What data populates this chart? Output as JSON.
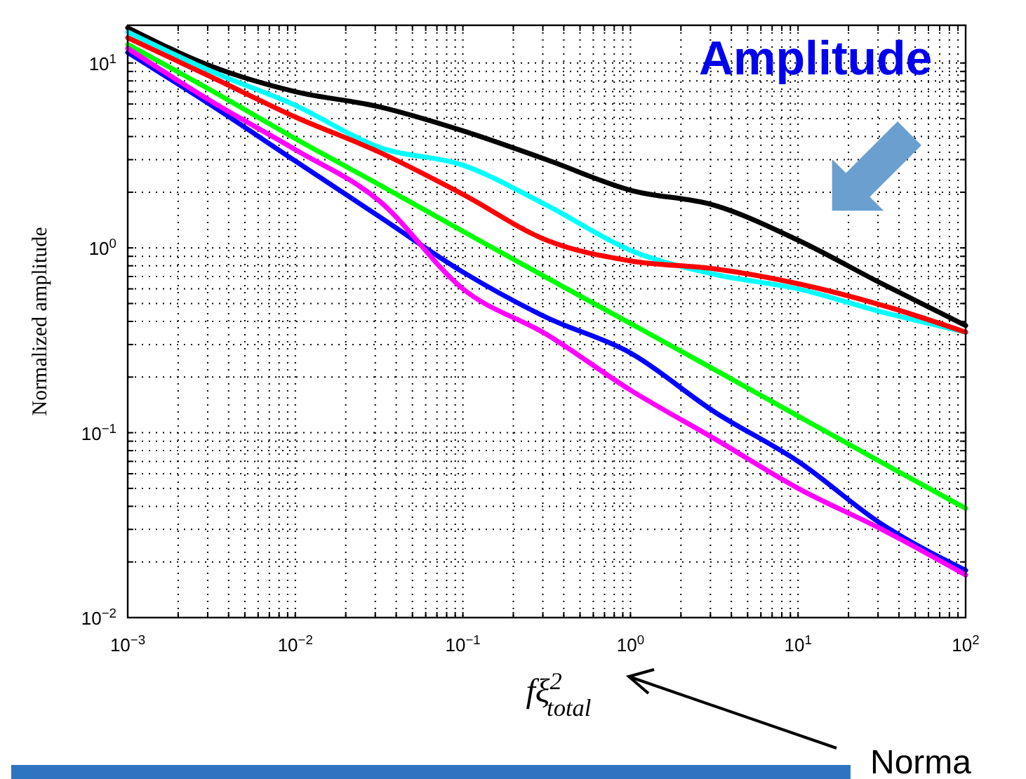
{
  "chart_data": {
    "type": "line",
    "xlabel": "fξ$^{2}$$_{total}$",
    "ylabel": "Normalized amplitude",
    "log": "xy",
    "grid": true,
    "line_style": "solid",
    "marker": "none",
    "x": [
      0.001,
      0.00316,
      0.01,
      0.0316,
      0.1,
      0.316,
      1,
      3.16,
      10,
      31.6,
      100
    ],
    "xlim": [
      0.001,
      100
    ],
    "ylim": [
      0.01,
      16
    ],
    "xticks": [
      {
        "value": 0.001,
        "label": "10$^{−3}$"
      },
      {
        "value": 0.01,
        "label": "10$^{−2}$"
      },
      {
        "value": 0.1,
        "label": "10$^{−1}$"
      },
      {
        "value": 1,
        "label": "10$^{0}$"
      },
      {
        "value": 10,
        "label": "10$^{1}$"
      },
      {
        "value": 100,
        "label": "10$^{2}$"
      }
    ],
    "yticks": [
      {
        "value": 0.01,
        "label": "10$^{−2}$"
      },
      {
        "value": 0.1,
        "label": "10$^{−1}$"
      },
      {
        "value": 1,
        "label": "10$^{0}$"
      },
      {
        "value": 10,
        "label": "10$^{1}$"
      }
    ],
    "series": [
      {
        "color": "#000000",
        "values": [
          15.5,
          9.6,
          7.0,
          5.8,
          4.3,
          3.0,
          2.05,
          1.7,
          1.1,
          0.64,
          0.38
        ]
      },
      {
        "color": "#00ffff",
        "values": [
          14.7,
          9.0,
          5.9,
          3.5,
          2.8,
          1.7,
          0.97,
          0.72,
          0.6,
          0.45,
          0.35
        ]
      },
      {
        "color": "#ff0000",
        "values": [
          13.7,
          8.4,
          5.1,
          3.3,
          1.95,
          1.1,
          0.85,
          0.77,
          0.64,
          0.49,
          0.35
        ]
      },
      {
        "color": "#00ff00",
        "values": [
          12.6,
          7.1,
          3.9,
          2.2,
          1.23,
          0.69,
          0.39,
          0.22,
          0.123,
          0.069,
          0.039
        ]
      },
      {
        "color": "#0000ff",
        "values": [
          11.4,
          5.9,
          2.95,
          1.48,
          0.74,
          0.42,
          0.27,
          0.13,
          0.07,
          0.032,
          0.018
        ]
      },
      {
        "color": "#ff00ff",
        "values": [
          12.0,
          6.2,
          3.4,
          1.8,
          0.6,
          0.34,
          0.17,
          0.093,
          0.05,
          0.03,
          0.017
        ]
      }
    ],
    "annotations": [
      "Amplitude",
      "Norma"
    ]
  }
}
